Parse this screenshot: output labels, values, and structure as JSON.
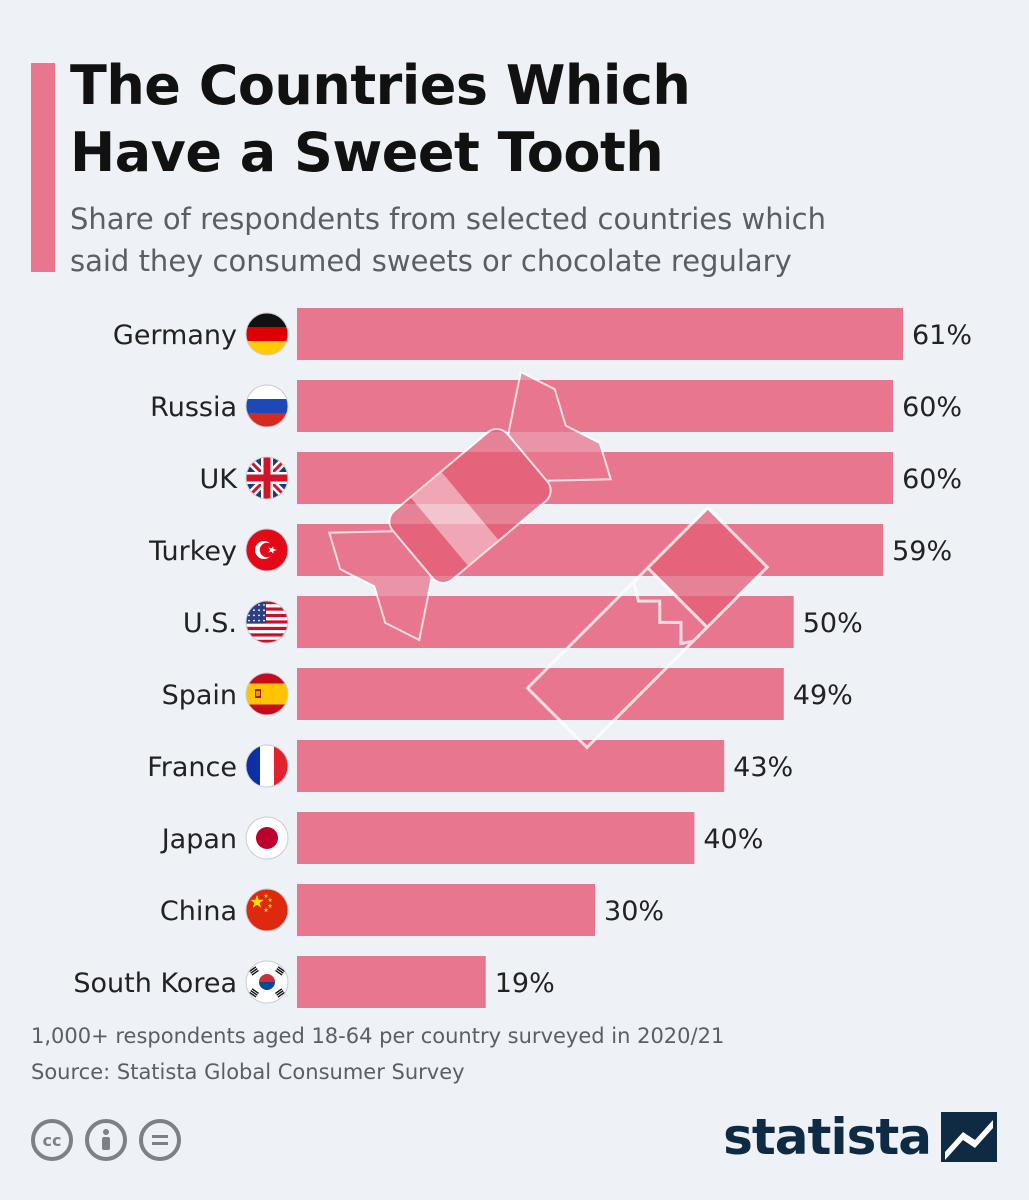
{
  "header": {
    "title_line1": "The Countries Which",
    "title_line2": "Have a Sweet Tooth",
    "subtitle_line1": "Share of respondents from selected countries which",
    "subtitle_line2": "said they consumed sweets or chocolate regulary"
  },
  "chart_data": {
    "type": "bar",
    "orientation": "horizontal",
    "title": "The Countries Which Have a Sweet Tooth",
    "subtitle": "Share of respondents from selected countries which said they consumed sweets or chocolate regulary",
    "xlabel": "",
    "ylabel": "",
    "unit": "%",
    "xlim": [
      0,
      61
    ],
    "grid": false,
    "categories": [
      "Germany",
      "Russia",
      "UK",
      "Turkey",
      "U.S.",
      "Spain",
      "France",
      "Japan",
      "China",
      "South Korea"
    ],
    "values": [
      61,
      60,
      60,
      59,
      50,
      49,
      43,
      40,
      30,
      19
    ],
    "value_labels": [
      "61%",
      "60%",
      "60%",
      "59%",
      "50%",
      "49%",
      "43%",
      "40%",
      "30%",
      "19%"
    ],
    "bar_color": "#e8768e"
  },
  "flags": [
    "flag-germany-icon",
    "flag-russia-icon",
    "flag-uk-icon",
    "flag-turkey-icon",
    "flag-us-icon",
    "flag-spain-icon",
    "flag-france-icon",
    "flag-japan-icon",
    "flag-china-icon",
    "flag-south-korea-icon"
  ],
  "footer": {
    "note": "1,000+ respondents aged 18-64 per country surveyed in 2020/21",
    "source": "Source: Statista Global Consumer Survey",
    "brand": "statista",
    "license_icons": [
      "cc-icon",
      "attribution-icon",
      "no-derivatives-icon"
    ],
    "cc_label": "cc"
  },
  "colors": {
    "accent": "#e8768e",
    "background": "#eef1f5",
    "brand": "#0f2a43"
  }
}
